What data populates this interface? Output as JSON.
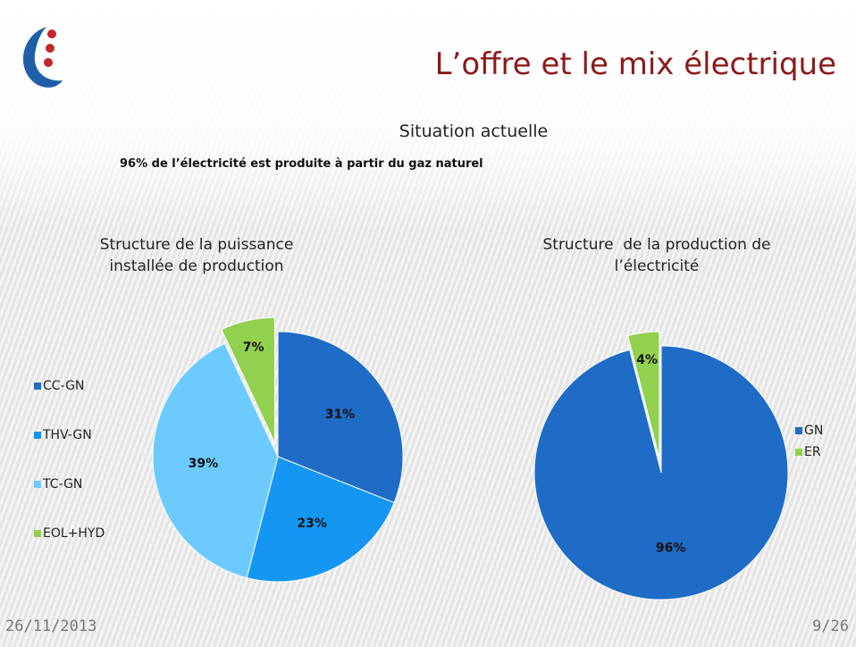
{
  "header": {
    "title": "L’offre et le mix électrique",
    "subtitle": "Situation actuelle",
    "note": "96% de l’électricité est produite à partir du gaz naturel"
  },
  "footer": {
    "date": "26/11/2013",
    "page": "9/26"
  },
  "chart_data": [
    {
      "type": "pie",
      "title": "Structure de la puissance installée de production",
      "categories": [
        "CC-GN",
        "THV-GN",
        "TC-GN",
        "EOL+HYD"
      ],
      "values": [
        31,
        23,
        39,
        7
      ],
      "value_labels": [
        "31%",
        "23%",
        "39%",
        "7%"
      ],
      "colors": [
        "#1f6cc7",
        "#1596f2",
        "#6ccaff",
        "#92d050"
      ],
      "legend": "left"
    },
    {
      "type": "pie",
      "title": "Structure  de la production de l’électricité",
      "categories": [
        "GN",
        "ER"
      ],
      "values": [
        96,
        4
      ],
      "value_labels": [
        "96%",
        "4%"
      ],
      "colors": [
        "#1f6cc7",
        "#92d050"
      ],
      "legend": "right"
    }
  ]
}
